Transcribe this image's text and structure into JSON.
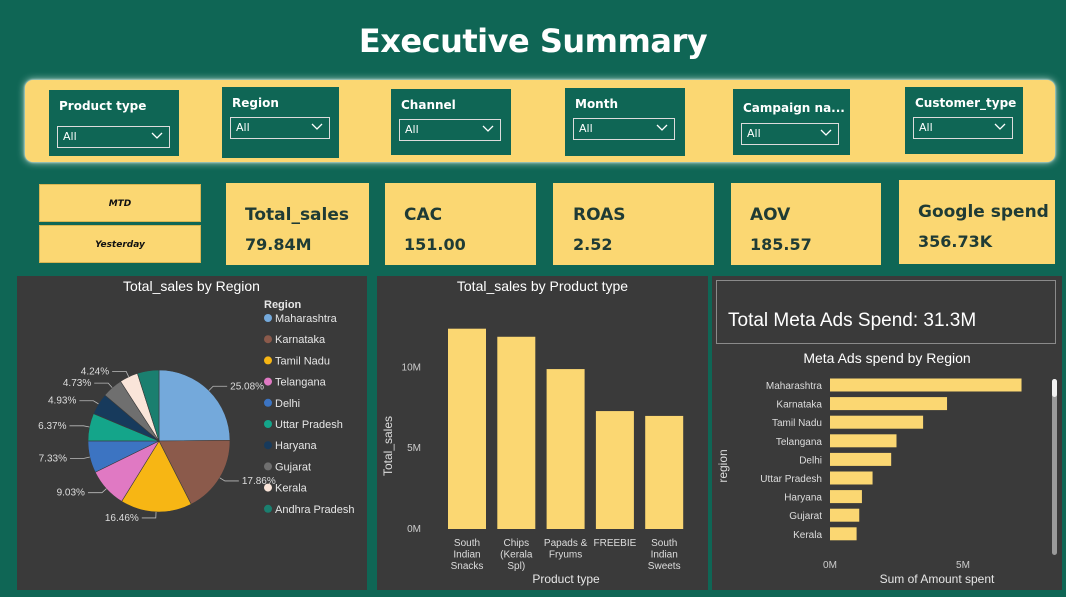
{
  "page_title": "Executive Summary",
  "filters": [
    {
      "label": "Product type",
      "value": "All"
    },
    {
      "label": "Region",
      "value": "All"
    },
    {
      "label": "Channel",
      "value": "All"
    },
    {
      "label": "Month",
      "value": "All"
    },
    {
      "label": "Campaign na...",
      "value": "All"
    },
    {
      "label": "Customer_type",
      "value": "All"
    }
  ],
  "period_toggle": {
    "mtd": "MTD",
    "yesterday": "Yesterday"
  },
  "kpis": [
    {
      "label": "Total_sales",
      "value": "79.84M"
    },
    {
      "label": "CAC",
      "value": "151.00"
    },
    {
      "label": "ROAS",
      "value": "2.52"
    },
    {
      "label": "AOV",
      "value": "185.57"
    },
    {
      "label": "Google spend",
      "value": "356.73K"
    }
  ],
  "meta_card": {
    "text": "Total Meta Ads Spend: 31.3M"
  },
  "colors": {
    "background": "#0f6655",
    "accent": "#fbd772",
    "panel": "#3a3a3a"
  },
  "chart_data": [
    {
      "type": "pie",
      "title": "Total_sales by Region",
      "legend_title": "Region",
      "legend_position": "right",
      "categories": [
        "Maharashtra",
        "Karnataka",
        "Tamil Nadu",
        "Telangana",
        "Delhi",
        "Uttar Pradesh",
        "Haryana",
        "Gujarat",
        "Kerala",
        "Andhra Pradesh"
      ],
      "values": [
        25.08,
        17.86,
        16.46,
        9.03,
        7.33,
        6.37,
        4.93,
        4.73,
        4.24,
        4.97
      ],
      "data_labels": [
        "25.08%",
        "17.86%",
        "16.46%",
        "9.03%",
        "7.33%",
        "6.37%",
        "4.93%",
        "4.73%",
        "4.24%",
        ""
      ],
      "colors": [
        "#74a9db",
        "#8b5a4b",
        "#f7b614",
        "#e079c3",
        "#3c74c2",
        "#14a58a",
        "#173a5c",
        "#6f6f6f",
        "#fae5d9",
        "#1a7f6f"
      ]
    },
    {
      "type": "bar",
      "title": "Total_sales by Product type",
      "xlabel": "Product type",
      "ylabel": "Total_sales",
      "categories": [
        [
          "South",
          "Indian",
          "Snacks"
        ],
        [
          "Chips",
          "(Kerala",
          "Spl)"
        ],
        [
          "Papads &",
          "Fryums"
        ],
        [
          "FREEBIE"
        ],
        [
          "South",
          "Indian",
          "Sweets"
        ]
      ],
      "values": [
        12.4,
        11.9,
        9.9,
        7.3,
        7.0
      ],
      "ylim": [
        0,
        13
      ],
      "yticks": [
        {
          "v": 0,
          "label": "0M"
        },
        {
          "v": 5,
          "label": "5M"
        },
        {
          "v": 10,
          "label": "10M"
        }
      ],
      "color": "#fbd772"
    },
    {
      "type": "bar",
      "orientation": "horizontal",
      "title": "Meta Ads spend by Region",
      "xlabel": "Sum of Amount spent",
      "ylabel": "region",
      "categories": [
        "Maharashtra",
        "Karnataka",
        "Tamil Nadu",
        "Telangana",
        "Delhi",
        "Uttar Pradesh",
        "Haryana",
        "Gujarat",
        "Kerala"
      ],
      "values": [
        7.2,
        4.4,
        3.5,
        2.5,
        2.3,
        1.6,
        1.2,
        1.1,
        1.0
      ],
      "xlim": [
        0,
        8.5
      ],
      "xticks": [
        {
          "v": 0,
          "label": "0M"
        },
        {
          "v": 5,
          "label": "5M"
        }
      ],
      "color": "#fbd772"
    }
  ]
}
